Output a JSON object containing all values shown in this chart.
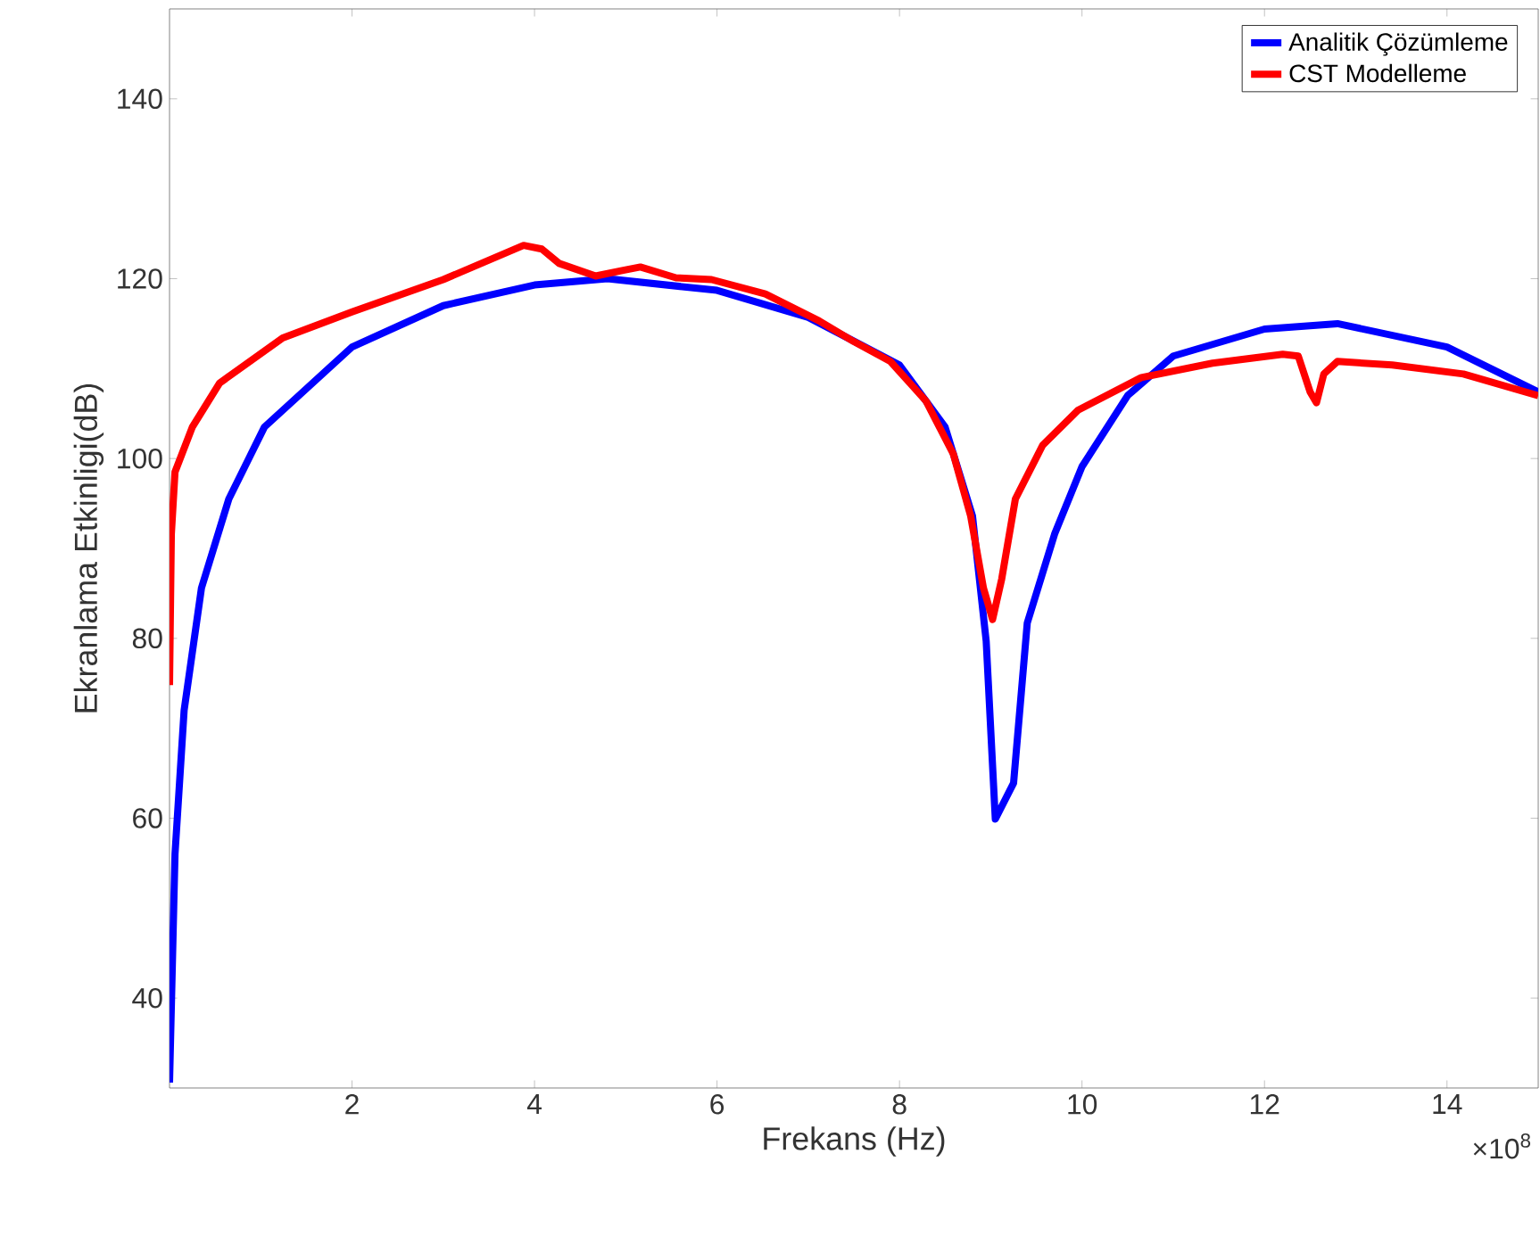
{
  "chart_data": {
    "type": "line",
    "xlabel": "Frekans (Hz)",
    "ylabel": "Ekranlama Etkinligi(dB)",
    "annotations": [
      "×10$^{8}$"
    ],
    "xlim": [
      0,
      15
    ],
    "ylim": [
      30,
      150
    ],
    "xticks": [
      2,
      4,
      6,
      8,
      10,
      12,
      14
    ],
    "yticks": [
      40,
      60,
      80,
      100,
      120,
      140
    ],
    "grid": false,
    "legend": "top right",
    "line_style": "solid",
    "marker": "none",
    "series": [
      {
        "name": "Analitik Çözümleme",
        "color": "#0000ff",
        "x": [
          0,
          0.06,
          0.16,
          0.35,
          0.65,
          1.04,
          2,
          3,
          4,
          4.8,
          6,
          7,
          8,
          8.5,
          8.8,
          8.95,
          9.05,
          9.25,
          9.4,
          9.7,
          10,
          10.5,
          11,
          12,
          12.8,
          14,
          15
        ],
        "values": [
          30.6,
          56,
          72,
          85.6,
          95.5,
          103.5,
          112.4,
          117,
          119.3,
          120,
          118.7,
          115.7,
          110.4,
          103.5,
          93.6,
          79.7,
          59.9,
          63.9,
          81.7,
          91.6,
          99.1,
          107,
          111.4,
          114.4,
          115,
          112.4,
          107.4
        ]
      },
      {
        "name": "CST Modelleme",
        "color": "#ff0000",
        "x": [
          0,
          0.02,
          0.06,
          0.25,
          0.55,
          1.24,
          2,
          3,
          3.88,
          4.08,
          4.27,
          4.67,
          4.96,
          5.16,
          5.55,
          5.94,
          6.53,
          7.12,
          7.5,
          7.9,
          8.29,
          8.59,
          8.78,
          8.92,
          9.02,
          9.12,
          9.27,
          9.57,
          9.96,
          10.65,
          11.43,
          12.2,
          12.37,
          12.5,
          12.57,
          12.65,
          12.8,
          13.4,
          14.18,
          15
        ],
        "values": [
          74.8,
          91.6,
          98.5,
          103.5,
          108.4,
          113.4,
          116.3,
          119.9,
          123.7,
          123.3,
          121.7,
          120.3,
          120.9,
          121.3,
          120.1,
          119.9,
          118.3,
          115.3,
          113,
          110.8,
          106.4,
          100.5,
          93.6,
          85.6,
          82.1,
          86.6,
          95.5,
          101.5,
          105.4,
          109,
          110.6,
          111.6,
          111.4,
          107.4,
          106.2,
          109.4,
          110.8,
          110.4,
          109.4,
          107
        ]
      }
    ]
  }
}
